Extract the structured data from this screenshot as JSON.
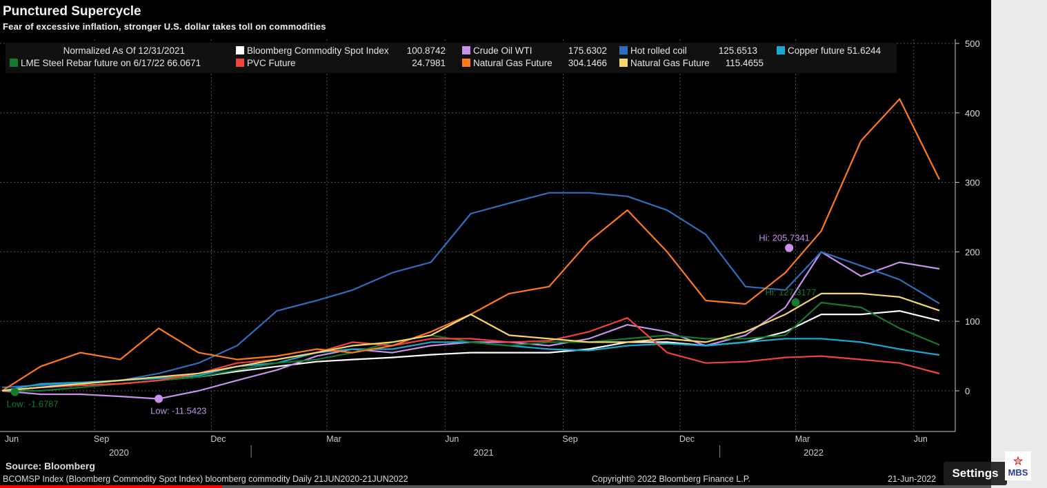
{
  "header": {
    "title": "Punctured Supercycle",
    "subtitle": "Fear of excessive inflation, stronger U.S. dollar takes toll on commodities"
  },
  "footer": {
    "source": "Source: Bloomberg",
    "info": "BCOMSP Index (Bloomberg Commodity Spot Index) bloomberg commodity  Daily 21JUN2020-21JUN2022",
    "copyright": "Copyright© 2022 Bloomberg Finance L.P.",
    "date": "21-Jun-2022"
  },
  "overlay": {
    "settings_label": "Settings",
    "logo_text": "MBS",
    "progress_percent": 22.4
  },
  "chart_data": {
    "type": "line",
    "title": "Punctured Supercycle",
    "subtitle": "Fear of excessive inflation, stronger U.S. dollar takes toll on commodities",
    "legend_header": "Normalized As Of 12/31/2021",
    "legend_placement": "top-left",
    "grid": true,
    "ylim": [
      -60,
      510
    ],
    "yticks": [
      0,
      100,
      200,
      300,
      400,
      500
    ],
    "xlim": [
      "2020-06-21",
      "2022-06-21"
    ],
    "xticks": [
      {
        "label": "Jun",
        "date": "2020-06-01"
      },
      {
        "label": "Sep",
        "date": "2020-09-01"
      },
      {
        "label": "Dec",
        "date": "2020-12-01"
      },
      {
        "label": "Mar",
        "date": "2021-03-01"
      },
      {
        "label": "Jun",
        "date": "2021-06-01"
      },
      {
        "label": "Sep",
        "date": "2021-09-01"
      },
      {
        "label": "Dec",
        "date": "2021-12-01"
      },
      {
        "label": "Mar",
        "date": "2022-03-01"
      },
      {
        "label": "Jun",
        "date": "2022-06-01"
      }
    ],
    "years": [
      {
        "label": "2020",
        "date": "2020-09-20"
      },
      {
        "label": "2021",
        "date": "2021-07-01"
      },
      {
        "label": "2022",
        "date": "2022-03-15"
      }
    ],
    "x": [
      "2020-06-21",
      "2020-07-21",
      "2020-08-21",
      "2020-09-21",
      "2020-10-21",
      "2020-11-21",
      "2020-12-21",
      "2021-01-21",
      "2021-02-21",
      "2021-03-21",
      "2021-04-21",
      "2021-05-21",
      "2021-06-21",
      "2021-07-21",
      "2021-08-21",
      "2021-09-21",
      "2021-10-21",
      "2021-11-21",
      "2021-12-21",
      "2022-01-21",
      "2022-02-21",
      "2022-03-21",
      "2022-04-21",
      "2022-05-21",
      "2022-06-21"
    ],
    "series": [
      {
        "name": "Bloomberg Commodity Spot Index",
        "last": "100.8742",
        "color": "#ffffff",
        "values": [
          0,
          5,
          8,
          10,
          15,
          20,
          28,
          35,
          42,
          45,
          48,
          52,
          55,
          55,
          55,
          60,
          70,
          70,
          65,
          70,
          85,
          110,
          110,
          115,
          100.87
        ]
      },
      {
        "name": "Crude Oil WTI",
        "last": "175.6302",
        "color": "#c792ea",
        "values": [
          0,
          -5,
          -5,
          -8,
          -11.5,
          0,
          15,
          30,
          50,
          60,
          55,
          65,
          70,
          70,
          65,
          75,
          95,
          85,
          65,
          80,
          120,
          200,
          165,
          185,
          175.63
        ]
      },
      {
        "name": "Hot rolled coil",
        "last": "125.6513",
        "color": "#2f6fbf",
        "values": [
          5,
          8,
          10,
          15,
          25,
          40,
          65,
          115,
          130,
          145,
          170,
          185,
          255,
          270,
          285,
          285,
          280,
          260,
          225,
          150,
          145,
          200,
          180,
          160,
          125.65
        ]
      },
      {
        "name": "Copper future",
        "last": "51.6244",
        "color": "#19a9d1",
        "values": [
          0,
          10,
          12,
          15,
          18,
          22,
          35,
          40,
          55,
          60,
          60,
          70,
          70,
          65,
          60,
          58,
          65,
          68,
          65,
          70,
          75,
          75,
          70,
          60,
          51.62
        ]
      },
      {
        "name": "LME Steel Rebar future on 6/17/22",
        "last": "66.0671",
        "color": "#137a2e",
        "values": [
          0,
          0,
          5,
          10,
          15,
          20,
          30,
          40,
          45,
          55,
          70,
          80,
          70,
          65,
          70,
          70,
          75,
          80,
          75,
          75,
          80,
          127,
          120,
          90,
          66.07
        ]
      },
      {
        "name": "PVC Future",
        "last": "24.7981",
        "color": "#f2443c",
        "values": [
          0,
          5,
          8,
          10,
          15,
          25,
          40,
          45,
          55,
          70,
          65,
          75,
          75,
          70,
          72,
          85,
          105,
          55,
          40,
          42,
          48,
          50,
          45,
          40,
          24.8
        ]
      },
      {
        "name": "Natural Gas Future",
        "last": "304.1466",
        "color": "#ff7a1a",
        "values": [
          0,
          35,
          55,
          45,
          90,
          55,
          45,
          50,
          60,
          55,
          65,
          85,
          110,
          140,
          150,
          215,
          260,
          200,
          130,
          125,
          170,
          230,
          360,
          420,
          304.15
        ]
      },
      {
        "name": "Natural Gas Future",
        "last": "115.4655",
        "color": "#f5d76e",
        "values": [
          0,
          5,
          10,
          15,
          20,
          25,
          35,
          45,
          55,
          65,
          70,
          80,
          110,
          80,
          75,
          70,
          70,
          75,
          70,
          85,
          110,
          140,
          140,
          135,
          115.47
        ]
      }
    ],
    "annotations": [
      {
        "text": "Low: -1.6787",
        "date": "2020-07-01",
        "value": -1.68,
        "color": "#137a2e"
      },
      {
        "text": "Low: -11.5423",
        "date": "2020-10-21",
        "value": -11.54,
        "color": "#c792ea"
      },
      {
        "text": "Hi: 205.7341",
        "date": "2022-02-24",
        "value": 205.73,
        "color": "#c792ea"
      },
      {
        "text": "Hi: 127.3177",
        "date": "2022-03-01",
        "value": 127.32,
        "color": "#137a2e"
      }
    ]
  }
}
